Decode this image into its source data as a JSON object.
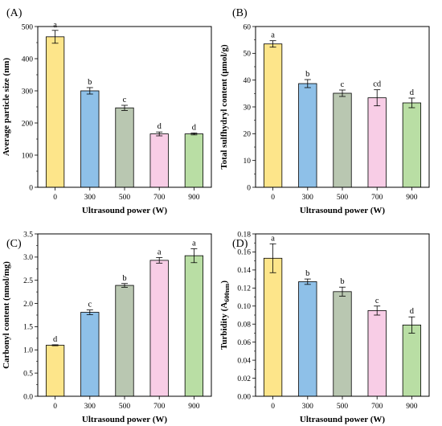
{
  "colors": {
    "bar_0": "#fde58a",
    "bar_300": "#8ec0e8",
    "bar_500": "#b9c7b1",
    "bar_700": "#f8cde6",
    "bar_900": "#b9dea4"
  },
  "chart_data": [
    {
      "type": "bar",
      "panel": "(A)",
      "categories": [
        "0",
        "300",
        "500",
        "700",
        "900"
      ],
      "values": [
        468,
        300,
        247,
        166,
        166
      ],
      "errors": [
        20,
        10,
        8,
        6,
        3
      ],
      "letters": [
        "a",
        "b",
        "c",
        "d",
        "d"
      ],
      "xlabel": "Ultrasound power (W)",
      "ylabel": "Average particle size (nm)",
      "ylim": [
        0,
        500
      ],
      "yticks": [
        "0",
        "100",
        "200",
        "300",
        "400",
        "500"
      ],
      "grid": false
    },
    {
      "type": "bar",
      "panel": "(B)",
      "categories": [
        "0",
        "300",
        "500",
        "700",
        "900"
      ],
      "values": [
        53.5,
        38.7,
        35.1,
        33.4,
        31.5
      ],
      "errors": [
        1.2,
        1.5,
        1.2,
        3.0,
        1.8
      ],
      "letters": [
        "a",
        "b",
        "c",
        "cd",
        "d"
      ],
      "xlabel": "Ultrasound power (W)",
      "ylabel": "Total sulfhydryl content (μmol/g)",
      "ylim": [
        0,
        60
      ],
      "yticks": [
        "0",
        "10",
        "20",
        "30",
        "40",
        "50",
        "60"
      ],
      "grid": false
    },
    {
      "type": "bar",
      "panel": "(C)",
      "categories": [
        "0",
        "300",
        "500",
        "700",
        "900"
      ],
      "values": [
        1.1,
        1.81,
        2.39,
        2.93,
        3.03
      ],
      "errors": [
        0.01,
        0.05,
        0.04,
        0.06,
        0.15
      ],
      "letters": [
        "d",
        "c",
        "b",
        "a",
        "a"
      ],
      "xlabel": "Ultrasound power (W)",
      "ylabel": "Carbonyl content (nmol/mg)",
      "ylim": [
        0,
        3.5
      ],
      "yticks": [
        "0.0",
        "0.5",
        "1.0",
        "1.5",
        "2.0",
        "2.5",
        "3.0",
        "3.5"
      ],
      "grid": false
    },
    {
      "type": "bar",
      "panel": "(D)",
      "categories": [
        "0",
        "300",
        "500",
        "700",
        "900"
      ],
      "values": [
        0.153,
        0.127,
        0.116,
        0.095,
        0.079
      ],
      "errors": [
        0.016,
        0.003,
        0.005,
        0.005,
        0.009
      ],
      "letters": [
        "a",
        "b",
        "b",
        "c",
        "d"
      ],
      "xlabel": "Ultrasound power (W)",
      "ylabel": "Turbidity (A600nm)",
      "ylim": [
        0,
        0.18
      ],
      "yticks": [
        "0.00",
        "0.02",
        "0.04",
        "0.06",
        "0.08",
        "0.10",
        "0.12",
        "0.14",
        "0.16",
        "0.18"
      ],
      "grid": false
    }
  ]
}
